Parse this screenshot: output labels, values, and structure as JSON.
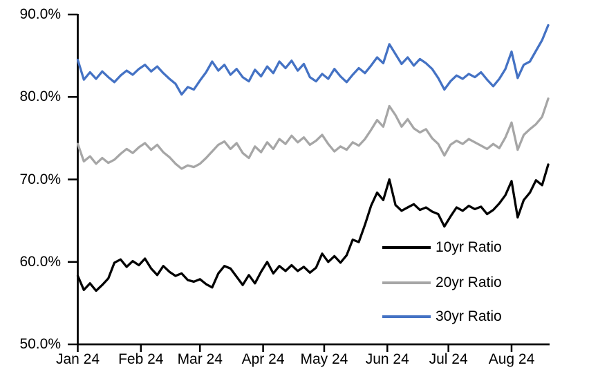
{
  "page": {
    "background_color": "#FFFFFF"
  },
  "chart_data": {
    "type": "line",
    "title": "",
    "xlabel": "",
    "ylabel": "",
    "grid": false,
    "axis_color": "#000000",
    "ylim": [
      50,
      90
    ],
    "y_tick_values": [
      90,
      80,
      70,
      60,
      50
    ],
    "y_tick_labels": [
      "90.0%",
      "80.0%",
      "70.0%",
      "60.0%",
      "50.0%"
    ],
    "x_tick_labels": [
      "Jan 24",
      "Feb 24",
      "Mar 24",
      "Apr 24",
      "May 24",
      "Jun 24",
      "Jul 24",
      "Aug 24"
    ],
    "x_tick_days": [
      0,
      31,
      60,
      91,
      121,
      152,
      182,
      213
    ],
    "x_total_days": 231,
    "x_step_days": 3,
    "legend_position": "inside-lower-right",
    "series": [
      {
        "name": "10yr Ratio",
        "color": "#000000",
        "values": [
          58.3,
          56.6,
          57.4,
          56.5,
          57.2,
          58.0,
          59.9,
          60.3,
          59.4,
          60.1,
          59.6,
          60.4,
          59.2,
          58.4,
          59.5,
          58.8,
          58.3,
          58.6,
          57.8,
          57.6,
          57.9,
          57.3,
          56.9,
          58.6,
          59.5,
          59.2,
          58.2,
          57.2,
          58.4,
          57.4,
          58.8,
          60.0,
          58.6,
          59.5,
          58.9,
          59.6,
          58.9,
          59.4,
          58.7,
          59.3,
          61.0,
          60.0,
          60.7,
          59.9,
          60.8,
          62.7,
          62.4,
          64.5,
          66.8,
          68.4,
          67.5,
          70.0,
          66.9,
          66.2,
          66.6,
          67.0,
          66.3,
          66.6,
          66.1,
          65.8,
          64.3,
          65.5,
          66.6,
          66.2,
          66.8,
          66.4,
          66.7,
          65.8,
          66.3,
          67.1,
          68.1,
          69.8,
          65.4,
          67.5,
          68.4,
          69.9,
          69.3,
          71.8
        ]
      },
      {
        "name": "20yr Ratio",
        "color": "#A6A6A6",
        "values": [
          74.3,
          72.2,
          72.8,
          71.9,
          72.6,
          72.0,
          72.4,
          73.1,
          73.7,
          73.2,
          73.9,
          74.4,
          73.6,
          74.2,
          73.3,
          72.7,
          71.9,
          71.3,
          71.7,
          71.5,
          71.9,
          72.6,
          73.4,
          74.2,
          74.6,
          73.7,
          74.4,
          73.2,
          72.6,
          74.0,
          73.3,
          74.5,
          73.7,
          74.9,
          74.3,
          75.3,
          74.5,
          75.1,
          74.2,
          74.7,
          75.4,
          74.3,
          73.4,
          74.0,
          73.6,
          74.5,
          74.1,
          74.9,
          76.0,
          77.2,
          76.4,
          78.9,
          77.8,
          76.4,
          77.3,
          76.2,
          75.7,
          76.1,
          75.0,
          74.3,
          72.9,
          74.2,
          74.7,
          74.3,
          74.9,
          74.5,
          74.1,
          73.7,
          74.3,
          73.8,
          75.1,
          76.9,
          73.6,
          75.4,
          76.1,
          76.7,
          77.6,
          79.8
        ]
      },
      {
        "name": "30yr Ratio",
        "color": "#4472C4",
        "values": [
          84.5,
          82.1,
          83.0,
          82.2,
          83.1,
          82.4,
          81.8,
          82.6,
          83.2,
          82.7,
          83.4,
          83.9,
          83.1,
          83.7,
          82.9,
          82.2,
          81.6,
          80.3,
          81.2,
          80.9,
          82.0,
          83.0,
          84.3,
          83.2,
          83.9,
          82.7,
          83.4,
          82.4,
          81.9,
          83.3,
          82.5,
          83.7,
          82.9,
          84.3,
          83.5,
          84.4,
          83.2,
          84.0,
          82.4,
          81.9,
          82.8,
          82.2,
          83.4,
          82.5,
          81.8,
          82.7,
          83.5,
          82.9,
          83.8,
          84.8,
          84.1,
          86.4,
          85.2,
          84.0,
          84.8,
          83.8,
          84.6,
          84.1,
          83.4,
          82.3,
          80.9,
          81.9,
          82.6,
          82.2,
          82.8,
          82.4,
          83.0,
          82.1,
          81.3,
          82.2,
          83.4,
          85.5,
          82.3,
          83.9,
          84.3,
          85.6,
          86.9,
          88.7
        ]
      }
    ]
  }
}
